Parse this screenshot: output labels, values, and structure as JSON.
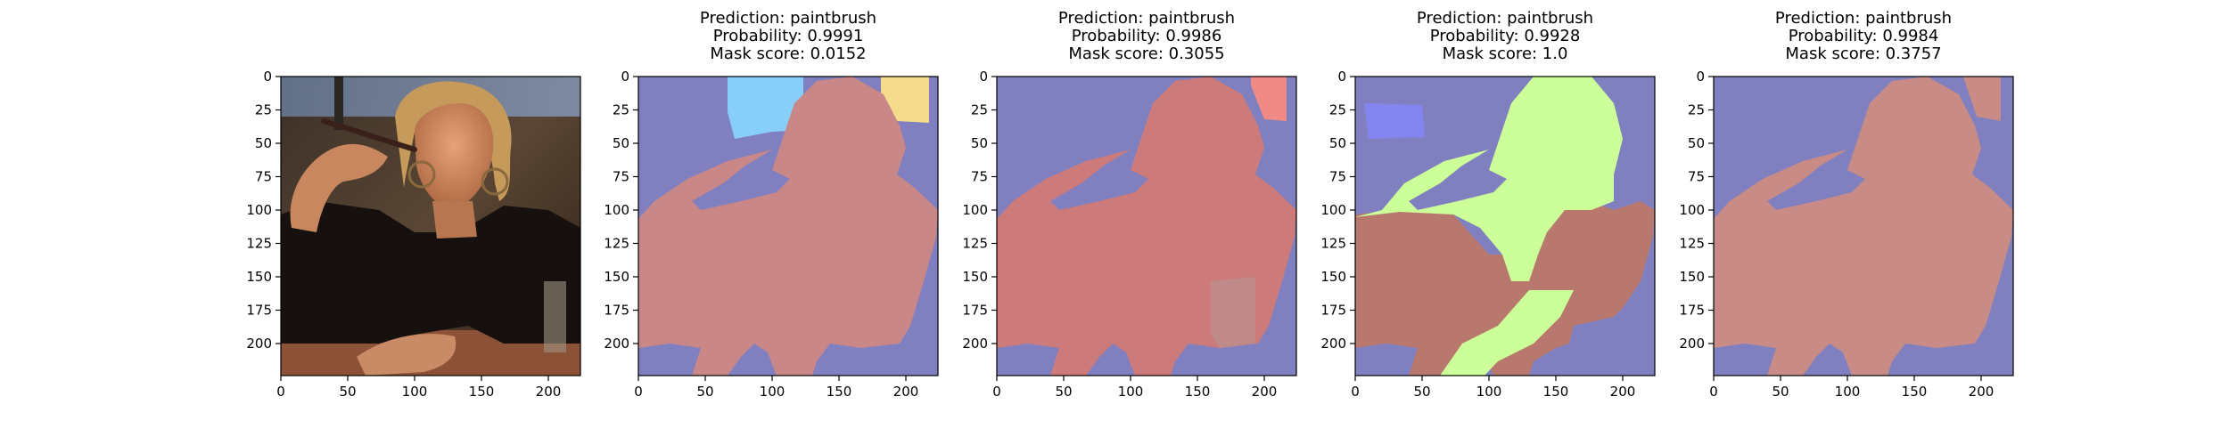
{
  "chart_data": [
    {
      "type": "image",
      "content": "photo",
      "title_lines": [],
      "xticks": [
        0,
        50,
        100,
        150,
        200
      ],
      "yticks": [
        0,
        25,
        50,
        75,
        100,
        125,
        150,
        175,
        200
      ],
      "xlim": [
        0,
        224
      ],
      "ylim": [
        224,
        0
      ]
    },
    {
      "type": "image",
      "content": "mask",
      "title_lines": [
        "Prediction: paintbrush",
        "Probability: 0.9991",
        "Mask score: 0.0152"
      ],
      "prediction": "paintbrush",
      "probability": 0.9991,
      "mask_score": 0.0152,
      "xticks": [
        0,
        50,
        100,
        150,
        200
      ],
      "yticks": [
        0,
        25,
        50,
        75,
        100,
        125,
        150,
        175,
        200
      ],
      "xlim": [
        0,
        224
      ],
      "ylim": [
        224,
        0
      ]
    },
    {
      "type": "image",
      "content": "mask",
      "title_lines": [
        "Prediction: paintbrush",
        "Probability: 0.9986",
        "Mask score: 0.3055"
      ],
      "prediction": "paintbrush",
      "probability": 0.9986,
      "mask_score": 0.3055,
      "xticks": [
        0,
        50,
        100,
        150,
        200
      ],
      "yticks": [
        0,
        25,
        50,
        75,
        100,
        125,
        150,
        175,
        200
      ],
      "xlim": [
        0,
        224
      ],
      "ylim": [
        224,
        0
      ]
    },
    {
      "type": "image",
      "content": "mask",
      "title_lines": [
        "Prediction: paintbrush",
        "Probability: 0.9928",
        "Mask score: 1.0"
      ],
      "prediction": "paintbrush",
      "probability": 0.9928,
      "mask_score": 1.0,
      "xticks": [
        0,
        50,
        100,
        150,
        200
      ],
      "yticks": [
        0,
        25,
        50,
        75,
        100,
        125,
        150,
        175,
        200
      ],
      "xlim": [
        0,
        224
      ],
      "ylim": [
        224,
        0
      ]
    },
    {
      "type": "image",
      "content": "mask",
      "title_lines": [
        "Prediction: paintbrush",
        "Probability: 0.9984",
        "Mask score: 0.3757"
      ],
      "prediction": "paintbrush",
      "probability": 0.9984,
      "mask_score": 0.3757,
      "xticks": [
        0,
        50,
        100,
        150,
        200
      ],
      "yticks": [
        0,
        25,
        50,
        75,
        100,
        125,
        150,
        175,
        200
      ],
      "xlim": [
        0,
        224
      ],
      "ylim": [
        224,
        0
      ]
    }
  ],
  "colors": {
    "background_region": "#8080c0",
    "person_region": "#c98787",
    "panel5_person": "#c98b85",
    "panel2_blue_patch": "#87cefa",
    "panel2_yellow_patch": "#f5dc8c",
    "panel3_red_patch": "#f08a84",
    "panel3_darker_patch": "#c08a8a",
    "panel4_lime_region": "#ccff99",
    "panel4_blue_patch": "#8484f0",
    "panel4_lower_region": "#b9786e"
  }
}
